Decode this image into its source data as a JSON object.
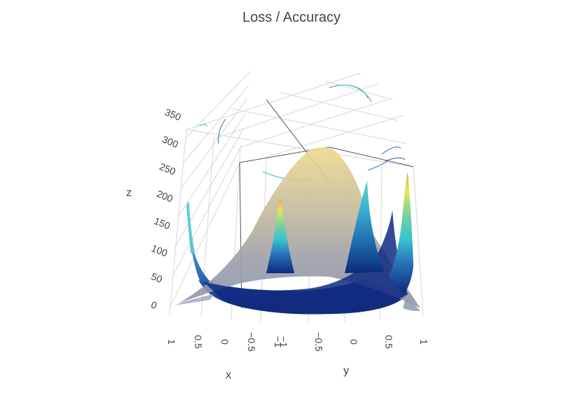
{
  "chart_data": {
    "type": "surface3d",
    "title": "Loss / Accuracy",
    "xlabel": "x",
    "ylabel": "y",
    "zlabel": "z",
    "x_ticks": [
      "1",
      "0.5",
      "0",
      "−0.5",
      "−1"
    ],
    "y_ticks": [
      "−1",
      "−0.5",
      "0",
      "0.5",
      "1"
    ],
    "z_ticks": [
      "0",
      "50",
      "100",
      "150",
      "200",
      "250",
      "300",
      "350"
    ],
    "xlim": [
      -1,
      1
    ],
    "ylim": [
      -1,
      1
    ],
    "zlim": [
      0,
      350
    ],
    "grid": true,
    "colorscale": "YlGnBu",
    "surfaces": [
      {
        "colorscale": "YlGnBu",
        "peaks": [
          {
            "x": -1,
            "y": -1,
            "z": 240
          },
          {
            "x": -1,
            "y": 1,
            "z": 245
          },
          {
            "x": 1,
            "y": -1,
            "z": 340
          },
          {
            "x": 1,
            "y": 1,
            "z": 355
          }
        ],
        "min_z": 0
      },
      {
        "colorscale": "greys-to-khaki",
        "peak": {
          "x": 0,
          "y": 0,
          "z": 320
        },
        "min_z": 0
      }
    ],
    "contours": {
      "top_plane": true
    }
  }
}
